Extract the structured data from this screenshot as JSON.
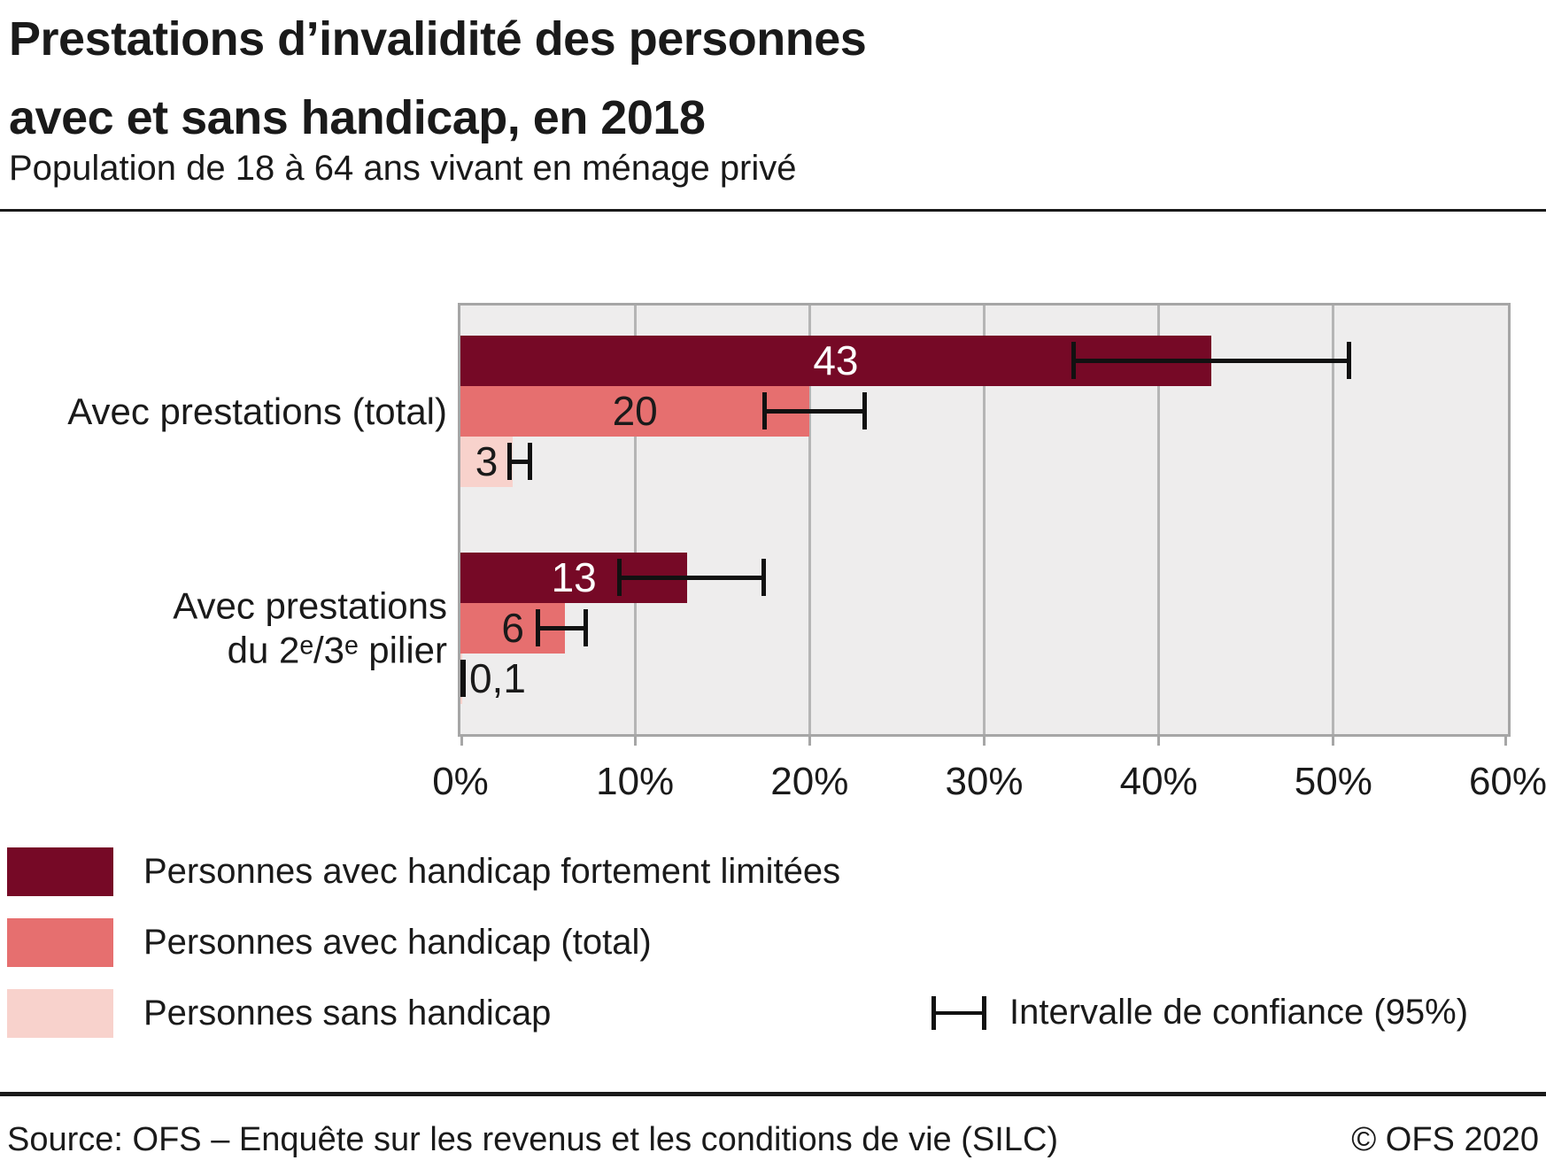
{
  "page": {
    "title": "Prestations d’invalidité des personnes\navec et sans handicap, en 2018",
    "subtitle": "Population de 18 à 64 ans vivant en ménage privé",
    "source": "Source: OFS – Enquête sur les revenus et les conditions de vie (SILC)",
    "copyright": "© OFS 2020"
  },
  "chart_data": {
    "type": "bar",
    "orientation": "horizontal",
    "unit": "%",
    "xlim": [
      0,
      60
    ],
    "x_ticks": [
      "0%",
      "10%",
      "20%",
      "30%",
      "40%",
      "50%",
      "60%"
    ],
    "grid": true,
    "legend_position": "bottom-left",
    "categories": [
      "Avec prestations (total)",
      "Avec prestations\ndu 2ᵉ/3ᵉ pilier"
    ],
    "series": [
      {
        "name": "Personnes avec handicap fortement limitées",
        "color": "#760926",
        "label_color": "#ffffff",
        "values": [
          43,
          13
        ],
        "value_labels": [
          "43",
          "13"
        ],
        "ci95": [
          [
            35,
            51
          ],
          [
            9,
            17.5
          ]
        ]
      },
      {
        "name": "Personnes avec handicap (total)",
        "color": "#E66F6F",
        "label_color": "#1a1a1a",
        "values": [
          20,
          6
        ],
        "value_labels": [
          "20",
          "6"
        ],
        "ci95": [
          [
            17.3,
            23.3
          ],
          [
            4.3,
            7.3
          ]
        ]
      },
      {
        "name": "Personnes sans handicap",
        "color": "#F8D2CC",
        "label_color": "#1a1a1a",
        "values": [
          3,
          0.1
        ],
        "value_labels": [
          "3",
          "0,1"
        ],
        "ci95": [
          [
            2.7,
            4.1
          ],
          [
            0,
            0.3
          ]
        ]
      }
    ],
    "ci_legend_label": "Intervalle de confiance (95%)"
  },
  "legend": {
    "items": [
      {
        "label": "Personnes avec handicap fortement limitées",
        "color": "#760926"
      },
      {
        "label": "Personnes avec handicap (total)",
        "color": "#E66F6F"
      },
      {
        "label": "Personnes sans handicap",
        "color": "#F8D2CC"
      }
    ]
  }
}
